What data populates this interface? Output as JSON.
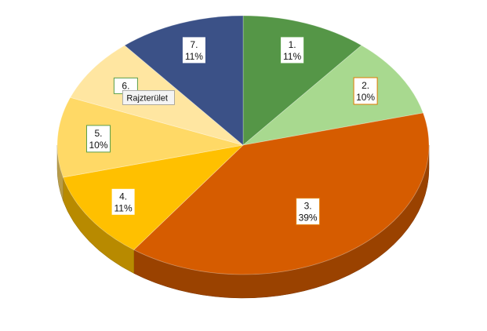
{
  "chart_data": {
    "type": "pie",
    "three_d": true,
    "categories": [
      "1.",
      "2.",
      "3.",
      "4.",
      "5.",
      "6.",
      "7."
    ],
    "values": [
      11,
      10,
      39,
      11,
      10,
      8,
      11
    ],
    "value_labels": [
      "11%",
      "10%",
      "39%",
      "11%",
      "10%",
      "",
      "11%"
    ],
    "colors": [
      "#559647",
      "#a8d98f",
      "#d65c00",
      "#ffc000",
      "#ffd966",
      "#ffe6a1",
      "#3b5187"
    ],
    "label_border_colors": [
      "#5a9e4a",
      "#e07b00",
      "#e07b00",
      "#ffc000",
      "#5a9e4a",
      "#5a9e4a",
      "#3b5187"
    ],
    "tooltip": "Rajzterület"
  }
}
